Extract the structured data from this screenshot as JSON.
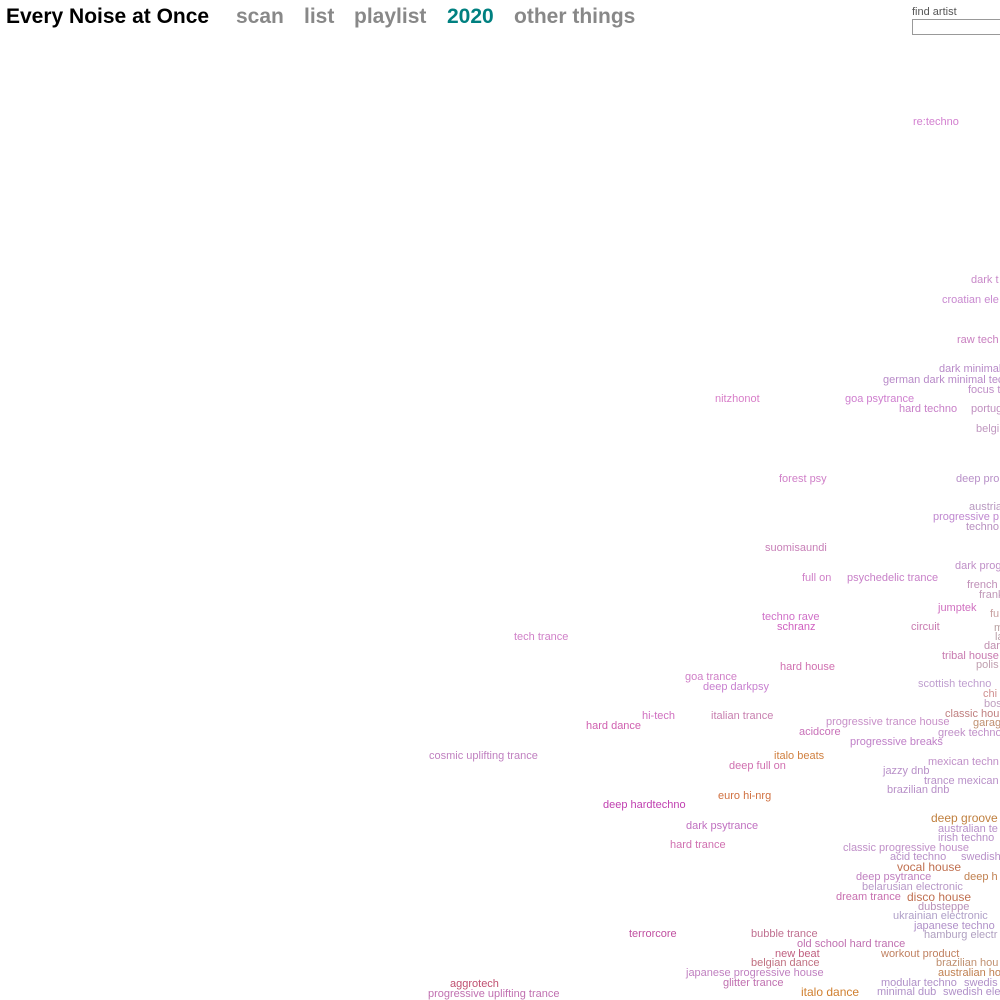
{
  "header": {
    "title": "Every Noise at Once",
    "nav": [
      "scan",
      "list",
      "playlist",
      "2020",
      "other things"
    ]
  },
  "search": {
    "label": "find artist"
  },
  "genres": [
    {
      "label": "re:techno",
      "color": "#d27fcf"
    },
    {
      "label": "dark t",
      "color": "#c98ac9"
    },
    {
      "label": "croatian ele",
      "color": "#c98ad0"
    },
    {
      "label": "raw tech",
      "color": "#c980c0"
    },
    {
      "label": "dark minimal",
      "color": "#b88ac8"
    },
    {
      "label": "german dark minimal tec",
      "color": "#b88ac8"
    },
    {
      "label": "focus t",
      "color": "#c090c8"
    },
    {
      "label": "nitzhonot",
      "color": "#d87ec8"
    },
    {
      "label": "goa psytrance",
      "color": "#cf7fcf"
    },
    {
      "label": "hard techno",
      "color": "#c87fc8"
    },
    {
      "label": "portug",
      "color": "#c090c0"
    },
    {
      "label": "belgi",
      "color": "#c098c0"
    },
    {
      "label": "forest psy",
      "color": "#d080c8"
    },
    {
      "label": "deep pro",
      "color": "#b890c8"
    },
    {
      "label": "austria",
      "color": "#b898c0"
    },
    {
      "label": "progressive p",
      "color": "#c088d0"
    },
    {
      "label": "techno",
      "color": "#b890c0"
    },
    {
      "label": "suomisaundi",
      "color": "#c880b8"
    },
    {
      "label": "dark prog",
      "color": "#c090c8"
    },
    {
      "label": "full on",
      "color": "#d080c8"
    },
    {
      "label": "psychedelic trance",
      "color": "#c880c8"
    },
    {
      "label": "french",
      "color": "#c090b8"
    },
    {
      "label": "frank",
      "color": "#c098b8"
    },
    {
      "label": "jumptek",
      "color": "#d070c0"
    },
    {
      "label": "fu",
      "color": "#c8a0a0"
    },
    {
      "label": "techno rave",
      "color": "#d070c8"
    },
    {
      "label": "m",
      "color": "#b8a0a0"
    },
    {
      "label": "schranz",
      "color": "#d060c0"
    },
    {
      "label": "circuit",
      "color": "#c87ab0"
    },
    {
      "label": "la",
      "color": "#b8a0a8"
    },
    {
      "label": "tech trance",
      "color": "#d080c8"
    },
    {
      "label": "dar",
      "color": "#c090b0"
    },
    {
      "label": "tribal house",
      "color": "#c87ab0"
    },
    {
      "label": "polis",
      "color": "#c0a0b0"
    },
    {
      "label": "hard house",
      "color": "#d070b0"
    },
    {
      "label": "goa trance",
      "color": "#d080c8"
    },
    {
      "label": "deep darkpsy",
      "color": "#c880d0"
    },
    {
      "label": "scottish techno",
      "color": "#c0a0d0"
    },
    {
      "label": "chi",
      "color": "#d09090"
    },
    {
      "label": "bos",
      "color": "#c0a0c0"
    },
    {
      "label": "classic hou",
      "color": "#c08080"
    },
    {
      "label": "hi-tech",
      "color": "#d070c0"
    },
    {
      "label": "italian trance",
      "color": "#c880b0"
    },
    {
      "label": "progressive trance house",
      "color": "#c890c8"
    },
    {
      "label": "garag",
      "color": "#c09070"
    },
    {
      "label": "hard dance",
      "color": "#d060b0"
    },
    {
      "label": "acidcore",
      "color": "#c870b8"
    },
    {
      "label": "greek techno",
      "color": "#c090c8"
    },
    {
      "label": "progressive breaks",
      "color": "#c080c8"
    },
    {
      "label": "cosmic uplifting trance",
      "color": "#c080c0"
    },
    {
      "label": "italo beats",
      "color": "#d08040"
    },
    {
      "label": "mexican techn",
      "color": "#c090c8"
    },
    {
      "label": "deep full on",
      "color": "#d070b0"
    },
    {
      "label": "jazzy dnb",
      "color": "#b890c8"
    },
    {
      "label": "trance mexican",
      "color": "#b890c8"
    },
    {
      "label": "brazilian dnb",
      "color": "#b890c8"
    },
    {
      "label": "euro hi-nrg",
      "color": "#d07040"
    },
    {
      "label": "deep hardtechno",
      "color": "#c040b0"
    },
    {
      "label": "deep groove",
      "color": "#c08040"
    },
    {
      "label": "dark psytrance",
      "color": "#c070c0"
    },
    {
      "label": "australian te",
      "color": "#b890c8"
    },
    {
      "label": "irish techno",
      "color": "#b890c8"
    },
    {
      "label": "hard trance",
      "color": "#d070b0"
    },
    {
      "label": "classic progressive house",
      "color": "#c090c8"
    },
    {
      "label": "acid techno",
      "color": "#b890c8"
    },
    {
      "label": "swedish",
      "color": "#b890c8"
    },
    {
      "label": "vocal house",
      "color": "#c07050"
    },
    {
      "label": "deep psytrance",
      "color": "#c080c0"
    },
    {
      "label": "deep h",
      "color": "#c08050"
    },
    {
      "label": "belarusian electronic",
      "color": "#b898c8"
    },
    {
      "label": "dream trance",
      "color": "#c870b0"
    },
    {
      "label": "disco house",
      "color": "#c07050"
    },
    {
      "label": "dubsteppe",
      "color": "#b890b8"
    },
    {
      "label": "ukrainian electronic",
      "color": "#b0a0c8"
    },
    {
      "label": "japanese techno",
      "color": "#b090c8"
    },
    {
      "label": "terrorcore",
      "color": "#c050a0"
    },
    {
      "label": "bubble trance",
      "color": "#c07090"
    },
    {
      "label": "hamburg electr",
      "color": "#b0a0c0"
    },
    {
      "label": "old school hard trance",
      "color": "#c070b0"
    },
    {
      "label": "new beat",
      "color": "#c06080"
    },
    {
      "label": "workout product",
      "color": "#c08060"
    },
    {
      "label": "belgian dance",
      "color": "#c07080"
    },
    {
      "label": "brazilian hou",
      "color": "#c09070"
    },
    {
      "label": "japanese progressive house",
      "color": "#c080c0"
    },
    {
      "label": "australian ho",
      "color": "#c08050"
    },
    {
      "label": "aggrotech",
      "color": "#c05070"
    },
    {
      "label": "glitter trance",
      "color": "#c070b0"
    },
    {
      "label": "modular techno",
      "color": "#b090c8"
    },
    {
      "label": "swedis",
      "color": "#b090c8"
    },
    {
      "label": "progressive uplifting trance",
      "color": "#c070b0"
    },
    {
      "label": "italo dance",
      "color": "#d08030"
    },
    {
      "label": "minimal dub",
      "color": "#b090c8"
    },
    {
      "label": "swedish ele",
      "color": "#b090c8"
    }
  ]
}
